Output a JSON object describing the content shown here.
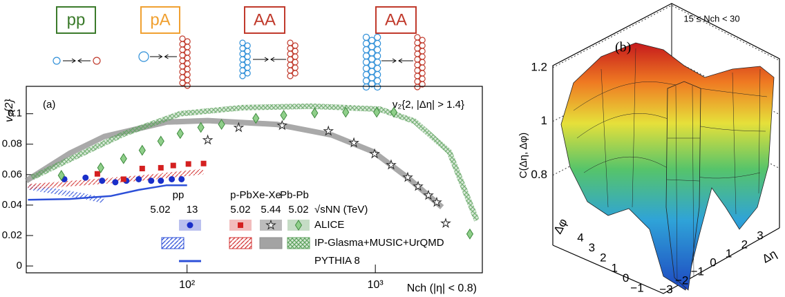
{
  "icons": [
    "pp",
    "pA",
    "AA",
    "AA"
  ],
  "chart_data": [
    {
      "type": "scatter",
      "ylabel": "v₂{2}",
      "xlabel": "Nch (|η| < 0.8)",
      "panel_label": "(a)",
      "annotation": "v₂{2, |Δη| > 1.4}",
      "xscale": "log",
      "xlim": [
        14,
        3700
      ],
      "xticks": [
        {
          "value": 100,
          "label": "10²"
        },
        {
          "value": 1000,
          "label": "10³"
        }
      ],
      "ylim": [
        -0.0045,
        0.118
      ],
      "yticks": [
        0,
        0.02,
        0.04,
        0.06,
        0.08,
        0.1
      ],
      "legend": {
        "systems": [
          "pp",
          "p-Pb",
          "Xe-Xe",
          "Pb-Pb"
        ],
        "energies": [
          "5.02",
          "13",
          "5.02",
          "5.44",
          "5.02"
        ],
        "energy_label": "√sNN (TeV)",
        "rows": [
          "ALICE",
          "IP-Glasma+MUSIC+UrQMD",
          "PYTHIA 8"
        ]
      },
      "series": [
        {
          "marker": "circle",
          "color": "#1a2fc9",
          "x": [
            22.3,
            28.9,
            35.4,
            41.6,
            47.6,
            55.4,
            64.5,
            72.6,
            83,
            93.5
          ],
          "values": [
            0.057,
            0.058,
            0.056,
            0.055,
            0.056,
            0.057,
            0.056,
            0.056,
            0.057,
            0.057
          ]
        },
        {
          "marker": "square",
          "color": "#d42020",
          "x": [
            33.4,
            46,
            57.8,
            72.6,
            84.5,
            101.7,
            122.4
          ],
          "values": [
            0.0605,
            0.057,
            0.064,
            0.0645,
            0.066,
            0.067,
            0.0673
          ]
        },
        {
          "marker": "star",
          "color": "#222222",
          "x": [
            128.8,
            188,
            320,
            563,
            769,
            991,
            1213,
            1486,
            1687,
            1914,
            2119,
            2364
          ],
          "values": [
            0.0827,
            0.0909,
            0.0923,
            0.0886,
            0.0809,
            0.0736,
            0.0664,
            0.0582,
            0.0523,
            0.0464,
            0.0418,
            0.028
          ]
        },
        {
          "marker": "diamond",
          "color": "#3f8a3f",
          "x": [
            21.5,
            34.8,
            46,
            57.8,
            72.6,
            92,
            118.4,
            152.5,
            232,
            326,
            476,
            696,
            1017,
            1254,
            3177
          ],
          "values": [
            0.0595,
            0.0645,
            0.0705,
            0.076,
            0.082,
            0.087,
            0.091,
            0.093,
            0.097,
            0.099,
            0.1005,
            0.101,
            0.101,
            0.101,
            0.021
          ]
        },
        {
          "marker": "hatch",
          "color": "#2c4fd8",
          "x": [
            14.3,
            20,
            28,
            36
          ],
          "values": [
            0.052,
            0.049,
            0.046,
            0.043
          ]
        },
        {
          "marker": "hatch",
          "color": "#d33333",
          "x": [
            14.3,
            30,
            60,
            122
          ],
          "values": [
            0.052,
            0.055,
            0.058,
            0.062
          ]
        },
        {
          "marker": "band",
          "color": "#8c8c8c",
          "x": [
            14,
            23.8,
            36.3,
            77.6,
            128.8,
            299,
            588,
            977,
            1486,
            2260
          ],
          "values": [
            0.056,
            0.074,
            0.085,
            0.0945,
            0.0955,
            0.093,
            0.086,
            0.075,
            0.058,
            0.0386
          ]
        },
        {
          "marker": "crosshatch",
          "color": "#5fa35f",
          "x": [
            15,
            23.8,
            46.8,
            92,
            196,
            456,
            1059,
            1619,
            2470,
            3455
          ],
          "values": [
            0.058,
            0.07,
            0.087,
            0.1,
            0.104,
            0.105,
            0.103,
            0.095,
            0.075,
            0.03
          ]
        },
        {
          "marker": "line",
          "color": "#2c4fd8",
          "x": [
            14.3,
            23.8,
            39.5,
            55.4,
            77.6,
            100
          ],
          "values": [
            0.0435,
            0.044,
            0.046,
            0.05,
            0.053,
            0.053
          ]
        }
      ]
    },
    {
      "type": "surface3d",
      "panel_label": "(b)",
      "annotation": "15 ≤ Nch < 30",
      "zlabel": "C(Δη, Δφ)",
      "xlabel": "Δη",
      "ylabel": "Δφ",
      "zlim": [
        0.54,
        1.22
      ],
      "zticks": [
        0.8,
        1,
        1.2
      ],
      "yticks": [
        4,
        3,
        2,
        1,
        0,
        {
          "value": -1,
          "label": "−1"
        }
      ],
      "xticks": [
        3,
        2,
        1,
        0,
        {
          "value": -1,
          "label": "−1"
        },
        {
          "value": -2,
          "label": "−2"
        },
        {
          "value": -3,
          "label": "−3"
        }
      ]
    }
  ]
}
